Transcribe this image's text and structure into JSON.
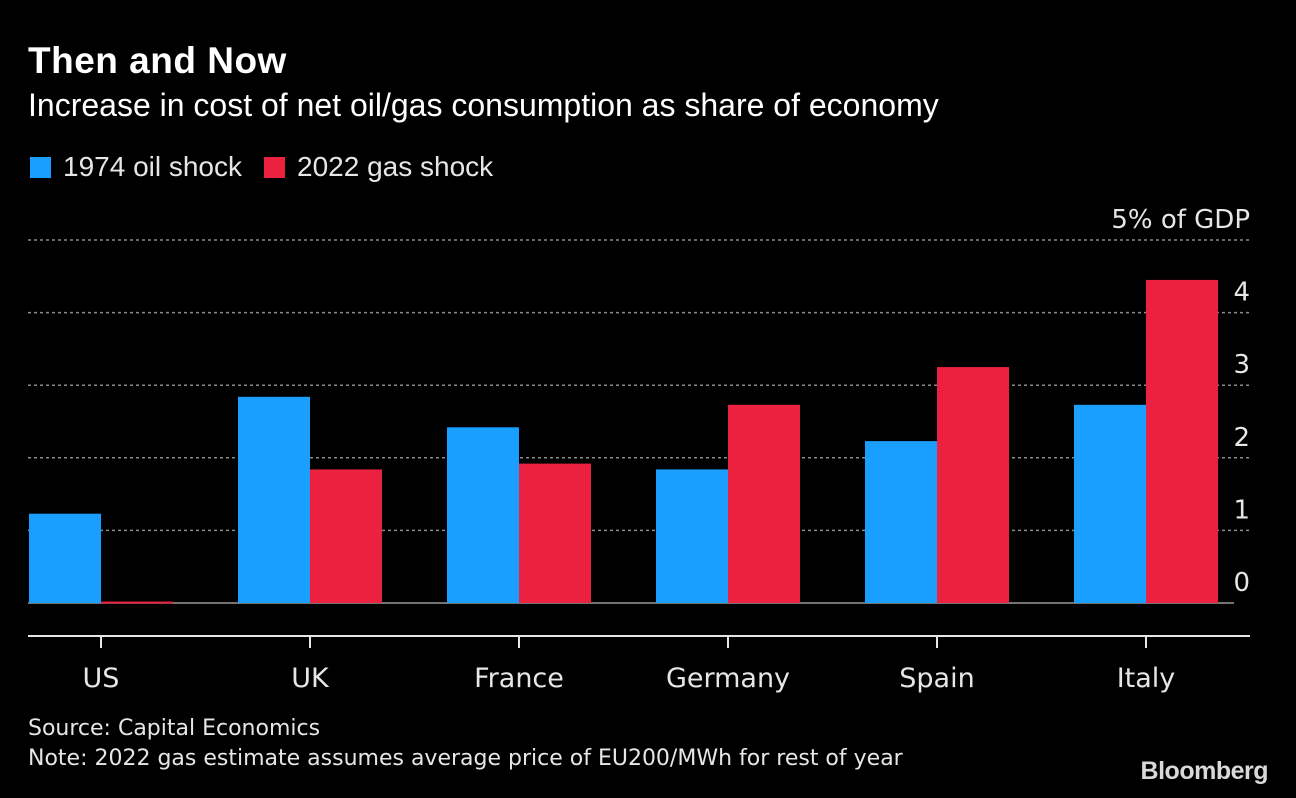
{
  "title": "Then and Now",
  "subtitle": "Increase in cost of net oil/gas consumption as share of economy",
  "source": "Source: Capital Economics",
  "note": "Note: 2022 gas estimate assumes average price of EU200/MWh for rest of year",
  "logo": "Bloomberg",
  "chart_data": {
    "type": "bar",
    "title": "Then and Now",
    "subtitle": "Increase in cost of net oil/gas consumption as share of economy",
    "ylabel": "% of GDP",
    "categories": [
      "US",
      "UK",
      "France",
      "Germany",
      "Spain",
      "Italy"
    ],
    "series": [
      {
        "name": "1974 oil shock",
        "color": "#1a9eff",
        "values": [
          1.23,
          2.84,
          2.42,
          1.84,
          2.23,
          2.73
        ]
      },
      {
        "name": "2022 gas shock",
        "color": "#ec2140",
        "values": [
          0.02,
          1.84,
          1.92,
          2.73,
          3.25,
          4.45
        ]
      }
    ],
    "yticks": [
      {
        "value": 0,
        "label": "0"
      },
      {
        "value": 1,
        "label": "1"
      },
      {
        "value": 2,
        "label": "2"
      },
      {
        "value": 3,
        "label": "3"
      },
      {
        "value": 4,
        "label": "4"
      },
      {
        "value": 5,
        "label": "5% of GDP"
      }
    ],
    "ylim": [
      0,
      5
    ],
    "grid": true,
    "legend_position": "top-left"
  }
}
